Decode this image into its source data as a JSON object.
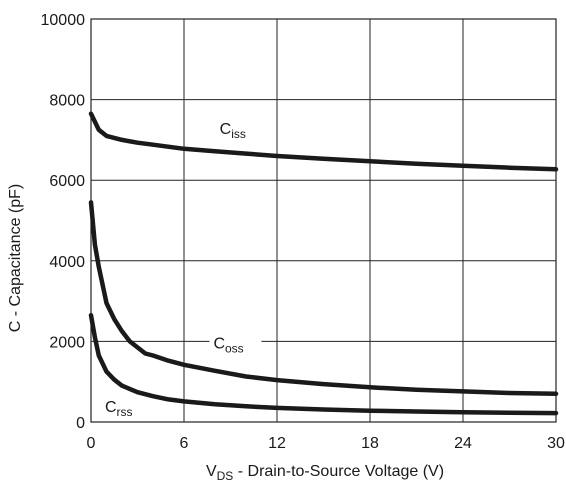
{
  "chart_data": {
    "type": "line",
    "xlabel": {
      "main": "V",
      "sub": "DS",
      "rest": " - Drain-to-Source Voltage (V)"
    },
    "ylabel": "C - Capacitance (pF)",
    "xlim": [
      0,
      30
    ],
    "ylim": [
      0,
      10000
    ],
    "x_ticks": [
      "0",
      "6",
      "12",
      "18",
      "24",
      "30"
    ],
    "y_ticks": [
      "0",
      "2000",
      "4000",
      "6000",
      "8000",
      "10000"
    ],
    "grid": true,
    "series": [
      {
        "name": "Ciss",
        "label_main": "C",
        "label_sub": "iss",
        "x": [
          0,
          0.5,
          1,
          2,
          3,
          4,
          6,
          8,
          10,
          12,
          15,
          18,
          21,
          24,
          27,
          30
        ],
        "y": [
          7650,
          7250,
          7100,
          7000,
          6930,
          6880,
          6780,
          6720,
          6660,
          6600,
          6530,
          6470,
          6410,
          6360,
          6310,
          6270
        ]
      },
      {
        "name": "Coss",
        "label_main": "C",
        "label_sub": "oss",
        "x": [
          0,
          0.25,
          0.5,
          1,
          1.5,
          2,
          2.5,
          3,
          3.5,
          4,
          5,
          6,
          8,
          10,
          12,
          15,
          18,
          21,
          24,
          27,
          30
        ],
        "y": [
          5450,
          4400,
          3850,
          2950,
          2550,
          2250,
          2000,
          1850,
          1700,
          1650,
          1520,
          1420,
          1270,
          1130,
          1040,
          940,
          860,
          800,
          760,
          720,
          700
        ]
      },
      {
        "name": "Crss",
        "label_main": "C",
        "label_sub": "rss",
        "x": [
          0,
          0.25,
          0.5,
          1,
          1.5,
          2,
          3,
          4,
          5,
          6,
          8,
          10,
          12,
          15,
          18,
          21,
          24,
          27,
          30
        ],
        "y": [
          2650,
          2100,
          1650,
          1250,
          1050,
          900,
          740,
          640,
          560,
          510,
          440,
          390,
          350,
          310,
          280,
          260,
          240,
          230,
          220
        ]
      }
    ]
  }
}
